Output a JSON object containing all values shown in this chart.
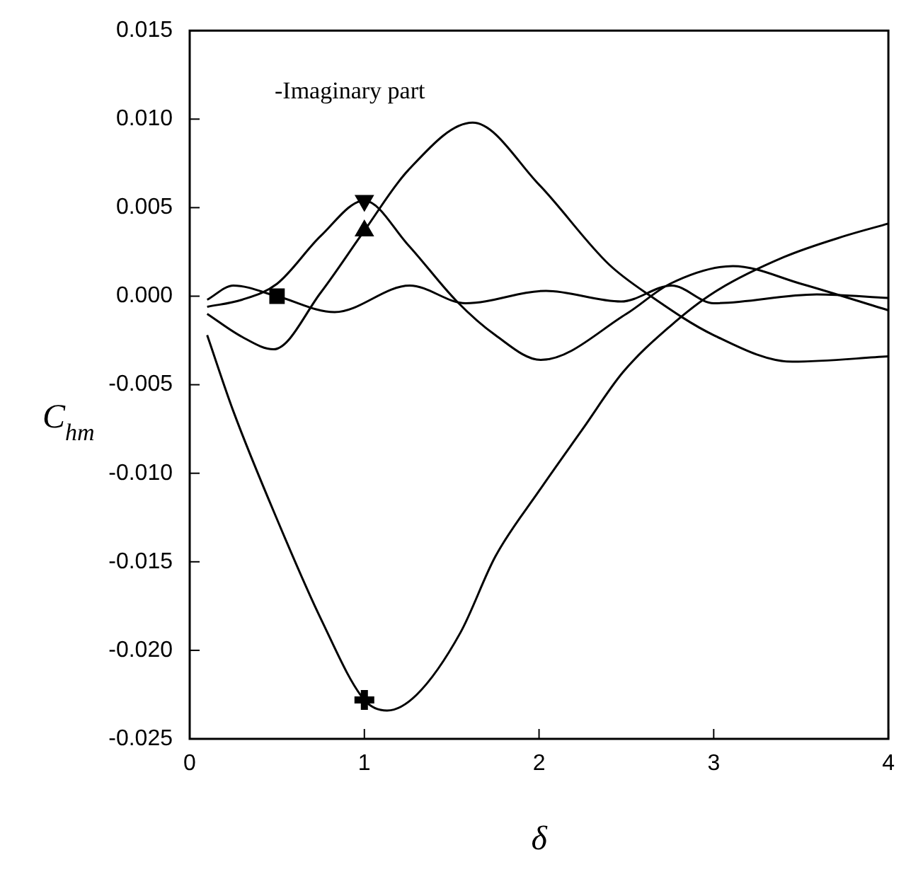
{
  "chart_data": {
    "type": "line",
    "xlabel": "δ",
    "ylabel": "C$_{hm}$",
    "annotations": [
      "-Imaginary part"
    ],
    "xlim": [
      0,
      4
    ],
    "xticks": [
      0,
      1,
      2,
      3,
      4
    ],
    "ylim": [
      -0.025,
      0.015
    ],
    "yticks": [
      {
        "value": -0.025,
        "label": "-0.025"
      },
      {
        "value": -0.02,
        "label": "-0.020"
      },
      {
        "value": -0.015,
        "label": "-0.015"
      },
      {
        "value": -0.01,
        "label": "-0.010"
      },
      {
        "value": -0.005,
        "label": "-0.005"
      },
      {
        "value": 0,
        "label": "0.000"
      },
      {
        "value": 0.005,
        "label": "0.005"
      },
      {
        "value": 0.01,
        "label": "0.010"
      },
      {
        "value": 0.015,
        "label": "0.015"
      }
    ],
    "grid": false,
    "legend": false,
    "marker": "none",
    "line_style": "solid",
    "series": [
      {
        "type": "line",
        "color": "#000000",
        "x": [
          0.1,
          0.3,
          0.5,
          0.75,
          1.0,
          1.25,
          1.53,
          1.75,
          2.01,
          2.5,
          2.75,
          3.11,
          3.5,
          4.0
        ],
        "values": [
          -0.0006,
          -0.0002,
          0.0007,
          0.0034,
          0.0054,
          0.0029,
          -0.0003,
          -0.0022,
          -0.0036,
          -0.001,
          0.0007,
          0.0017,
          0.0007,
          -0.0008
        ]
      },
      {
        "type": "line",
        "color": "#000000",
        "x": [
          0.1,
          0.3,
          0.48,
          0.75,
          1.0,
          1.25,
          1.62,
          2.0,
          2.4,
          2.64,
          3.0,
          3.45,
          4.0
        ],
        "values": [
          -0.001,
          -0.0023,
          -0.003,
          0.0002,
          0.0037,
          0.0071,
          0.0098,
          0.0063,
          0.0018,
          0,
          -0.0022,
          -0.0037,
          -0.0034
        ]
      },
      {
        "type": "line",
        "color": "#000000",
        "x": [
          0.1,
          0.25,
          0.5,
          0.83,
          1.26,
          1.58,
          2.04,
          2.47,
          2.76,
          3.0,
          3.59,
          4.0
        ],
        "values": [
          -0.0002,
          0.0006,
          0,
          -0.0009,
          0.0006,
          -0.0004,
          0.0003,
          -0.0003,
          0.0006,
          -0.0004,
          0.0001,
          -0.0001
        ]
      },
      {
        "type": "line",
        "color": "#000000",
        "x": [
          0.1,
          0.25,
          0.5,
          0.75,
          1.0,
          1.13,
          1.3,
          1.55,
          1.75,
          2.0,
          2.25,
          2.48,
          2.75,
          3.0,
          3.4,
          3.75,
          4.0
        ],
        "values": [
          -0.0022,
          -0.0065,
          -0.0126,
          -0.0182,
          -0.0228,
          -0.0234,
          -0.0225,
          -0.019,
          -0.0147,
          -0.011,
          -0.0075,
          -0.0043,
          -0.0017,
          0.0002,
          0.0022,
          0.0034,
          0.0041
        ]
      },
      {
        "type": "scatter",
        "color": "#000000",
        "marker": "triangle-down",
        "x": [
          1.0
        ],
        "values": [
          0.0054
        ]
      },
      {
        "type": "scatter",
        "color": "#000000",
        "marker": "triangle",
        "x": [
          1.0
        ],
        "values": [
          0.0037
        ]
      },
      {
        "type": "scatter",
        "color": "#000000",
        "marker": "square",
        "x": [
          0.5
        ],
        "values": [
          0
        ]
      },
      {
        "type": "scatter",
        "color": "#000000",
        "marker": "cross",
        "x": [
          1.0
        ],
        "values": [
          -0.0228
        ]
      }
    ]
  }
}
